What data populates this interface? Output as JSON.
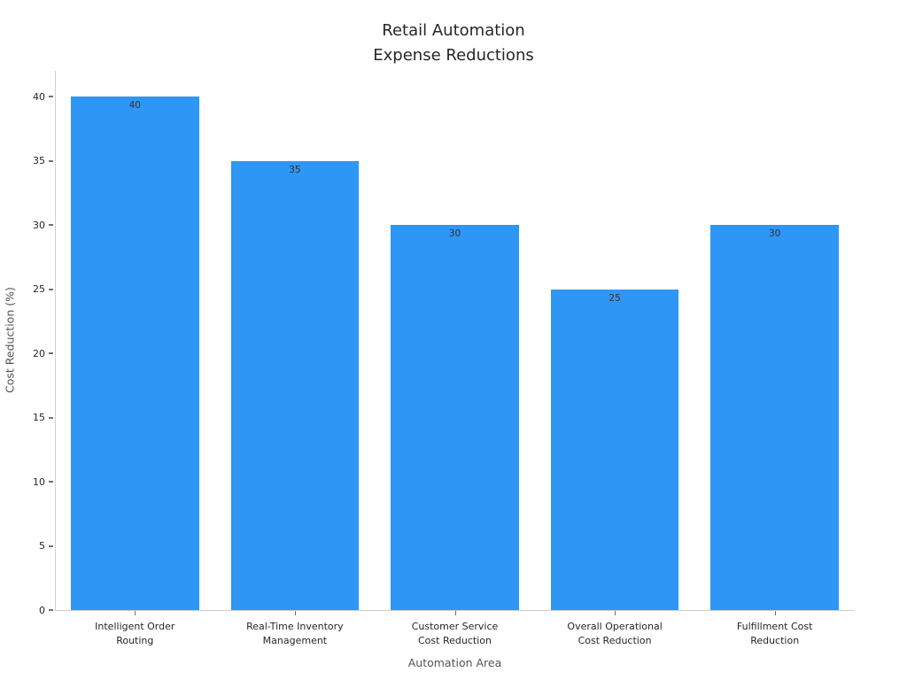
{
  "chart_data": {
    "type": "bar",
    "title": "Retail Automation\nExpense Reductions",
    "categories": [
      "Intelligent Order\nRouting",
      "Real-Time Inventory\nManagement",
      "Customer Service\nCost Reduction",
      "Overall Operational\nCost Reduction",
      "Fulfillment Cost\nReduction"
    ],
    "values": [
      40,
      35,
      30,
      25,
      30
    ],
    "value_labels": [
      "40",
      "35",
      "30",
      "25",
      "30"
    ],
    "xlabel": "Automation Area",
    "ylabel": "Cost Reduction (%)",
    "ylim": [
      0,
      42
    ],
    "yticks": [
      0,
      5,
      10,
      15,
      20,
      25,
      30,
      35,
      40
    ],
    "grid": false,
    "legend": null,
    "bar_color": "#2E96F5",
    "value_label_color": "#333333",
    "tick_label_color": "#262626",
    "axis_label_color": "#555555"
  }
}
